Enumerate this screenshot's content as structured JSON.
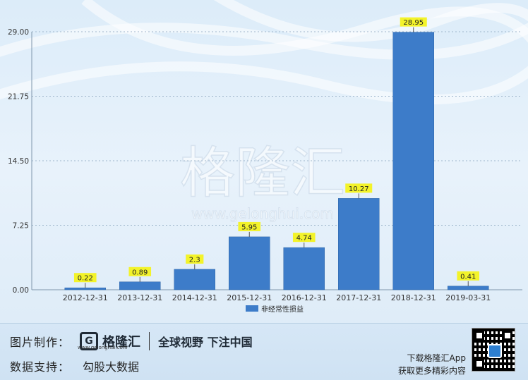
{
  "chart_data": {
    "type": "bar",
    "categories": [
      "2012-12-31",
      "2013-12-31",
      "2014-12-31",
      "2015-12-31",
      "2016-12-31",
      "2017-12-31",
      "2018-12-31",
      "2019-03-31"
    ],
    "series": [
      {
        "name": "非经常性损益",
        "values": [
          0.22,
          0.89,
          2.3,
          5.95,
          4.74,
          10.27,
          28.95,
          0.41
        ]
      }
    ],
    "data_labels": [
      "0.22",
      "0.89",
      "2.3",
      "5.95",
      "4.74",
      "10.27",
      "28.95",
      "0.41"
    ],
    "y_ticks": [
      "0.00",
      "7.25",
      "14.50",
      "21.75",
      "29.00"
    ],
    "ylim": [
      0,
      29
    ],
    "grid": true,
    "legend_position": "bottom",
    "bar_color": "#3d7cc9",
    "label_bg_color": "#f3f32a"
  },
  "watermark": {
    "name": "格隆汇",
    "url": "www.gelonghui.com"
  },
  "footer": {
    "made_label": "图片制作：",
    "logo_name": "格隆汇",
    "logo_url": "www.gelonghui.com",
    "slogan": "全球视野 下注中国",
    "data_label": "数据支持：",
    "data_source": "勾股大数据",
    "app_line1": "下载格隆汇App",
    "app_line2": "获取更多精彩内容"
  }
}
